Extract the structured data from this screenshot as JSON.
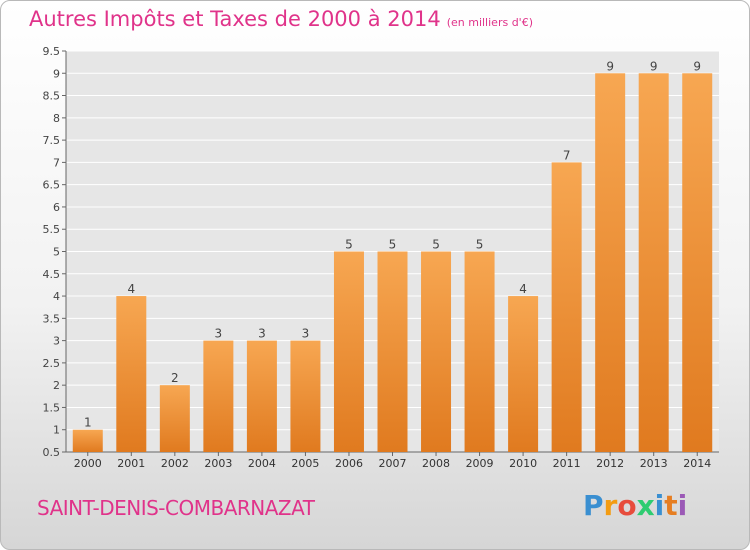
{
  "header": {
    "title": "Autres Impôts et Taxes de 2000 à 2014",
    "unit": "(en milliers d'€)"
  },
  "footer": {
    "commune": "SAINT-DENIS-COMBARNAZAT",
    "logo": {
      "letters": [
        "P",
        "r",
        "o",
        "x",
        "i",
        "t",
        "i"
      ],
      "colors": [
        "#3a8fd1",
        "#f39c12",
        "#e74c3c",
        "#2ecc71",
        "#3a8fd1",
        "#e67e22",
        "#9b59b6"
      ]
    }
  },
  "chart_data": {
    "type": "bar",
    "title": "Autres Impôts et Taxes de 2000 à 2014",
    "subtitle": "(en milliers d'€)",
    "categories": [
      "2000",
      "2001",
      "2002",
      "2003",
      "2004",
      "2005",
      "2006",
      "2007",
      "2008",
      "2009",
      "2010",
      "2011",
      "2012",
      "2013",
      "2014"
    ],
    "values": [
      1,
      4,
      2,
      3,
      3,
      3,
      5,
      5,
      5,
      5,
      4,
      7,
      9,
      9,
      9
    ],
    "data_labels": [
      "1",
      "4",
      "2",
      "3",
      "3",
      "3",
      "5",
      "5",
      "5",
      "5",
      "4",
      "7",
      "9",
      "9",
      "9"
    ],
    "ylim": [
      0.5,
      9.5
    ],
    "yticks": [
      "0.5",
      "1",
      "1.5",
      "2",
      "2.5",
      "3",
      "3.5",
      "4",
      "4.5",
      "5",
      "5.5",
      "6",
      "6.5",
      "7",
      "7.5",
      "8",
      "8.5",
      "9",
      "9.5"
    ],
    "ytick_values": [
      0.5,
      1,
      1.5,
      2,
      2.5,
      3,
      3.5,
      4,
      4.5,
      5,
      5.5,
      6,
      6.5,
      7,
      7.5,
      8,
      8.5,
      9,
      9.5
    ],
    "grid": true,
    "colors": {
      "bar_light": "#f7a752",
      "bar_dark": "#e07a1f",
      "plot_bg": "#e6e6e6",
      "grid": "#ffffff"
    }
  }
}
